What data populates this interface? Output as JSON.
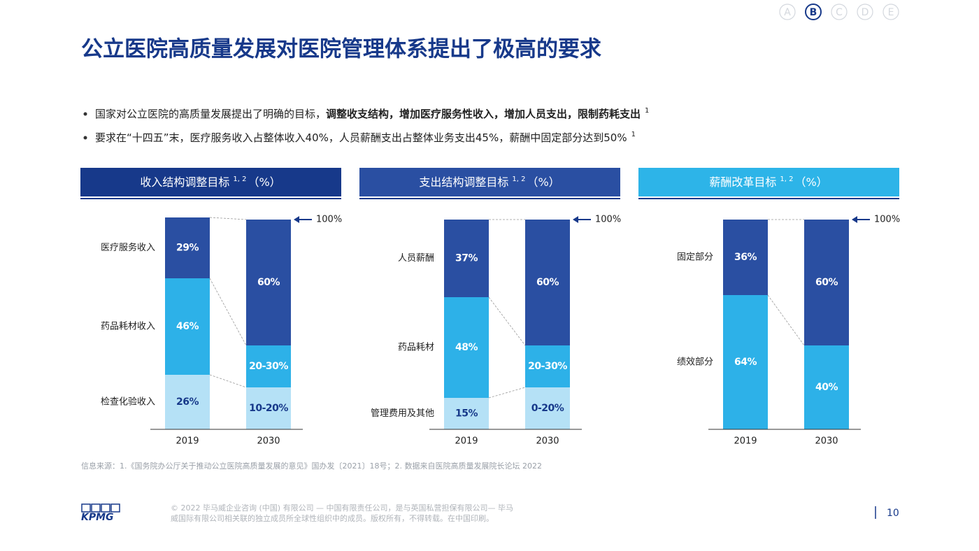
{
  "nav": [
    "A",
    "B",
    "C",
    "D",
    "E"
  ],
  "header": {
    "title": "公立医院高质量发展对医院管理体系提出了极高的要求"
  },
  "bullets": [
    {
      "text": "国家对公立医院的高质量发展提出了明确的目标，",
      "bold": "调整收支结构，增加医疗服务性收入，增加人员支出，限制药耗支出",
      "note": "1"
    },
    {
      "text": "要求在“十四五”末，医疗服务收入占整体收入40%，人员薪酬支出占整体业务支出45%，薪酬中固定部分达到50%",
      "bold": "",
      "note": "1"
    }
  ],
  "chart_data": [
    {
      "type": "bar",
      "stacked": true,
      "title": "收入结构调整目标",
      "title_note": "1, 2",
      "title_unit": "（%）",
      "header_color": "#17398a",
      "categories": [
        "2019",
        "2030"
      ],
      "ylim": [
        0,
        100
      ],
      "annotation": "100%",
      "series": [
        {
          "name": "检查化验收入",
          "color": "#b5e1f6",
          "label_color": "#17398a",
          "values": [
            26,
            20
          ],
          "value_labels": [
            "26%",
            "10-20%"
          ]
        },
        {
          "name": "药品耗材收入",
          "color": "#2db1e8",
          "label_color": "#ffffff",
          "values": [
            46,
            20
          ],
          "value_labels": [
            "46%",
            "20-30%"
          ]
        },
        {
          "name": "医疗服务收入",
          "color": "#2a4fa2",
          "label_color": "#ffffff",
          "values": [
            29,
            60
          ],
          "value_labels": [
            "29%",
            "60%"
          ]
        }
      ]
    },
    {
      "type": "bar",
      "stacked": true,
      "title": "支出结构调整目标",
      "title_note": "1, 2",
      "title_unit": "（%）",
      "header_color": "#2a4fa2",
      "categories": [
        "2019",
        "2030"
      ],
      "ylim": [
        0,
        100
      ],
      "annotation": "100%",
      "series": [
        {
          "name": "管理费用及其他",
          "color": "#b5e1f6",
          "label_color": "#17398a",
          "values": [
            15,
            20
          ],
          "value_labels": [
            "15%",
            "0-20%"
          ]
        },
        {
          "name": "药品耗材",
          "color": "#2db1e8",
          "label_color": "#ffffff",
          "values": [
            48,
            20
          ],
          "value_labels": [
            "48%",
            "20-30%"
          ]
        },
        {
          "name": "人员薪酬",
          "color": "#2a4fa2",
          "label_color": "#ffffff",
          "values": [
            37,
            60
          ],
          "value_labels": [
            "37%",
            "60%"
          ]
        }
      ]
    },
    {
      "type": "bar",
      "stacked": true,
      "title": "薪酬改革目标",
      "title_note": "1, 2",
      "title_unit": "（%）",
      "header_color": "#2db4e8",
      "categories": [
        "2019",
        "2030"
      ],
      "ylim": [
        0,
        100
      ],
      "annotation": "100%",
      "series": [
        {
          "name": "绩效部分",
          "color": "#2db1e8",
          "label_color": "#ffffff",
          "values": [
            64,
            40
          ],
          "value_labels": [
            "64%",
            "40%"
          ]
        },
        {
          "name": "固定部分",
          "color": "#2a4fa2",
          "label_color": "#ffffff",
          "values": [
            36,
            60
          ],
          "value_labels": [
            "36%",
            "60%"
          ]
        }
      ]
    }
  ],
  "source": "信息来源：1.《国务院办公厅关于推动公立医院高质量发展的意见》国办发〔2021〕18号；2. 数据来自医院高质量发展院长论坛 2022",
  "footer": {
    "logo": "KPMG",
    "copyright": [
      "© 2022 毕马威企业咨询 (中国) 有限公司 — 中国有限责任公司，是与英国私营担保有限公司— 毕马",
      "威国际有限公司相关联的独立成员所全球性组织中的成员。版权所有，不得转载。在中国印刷。"
    ],
    "page": "10"
  }
}
